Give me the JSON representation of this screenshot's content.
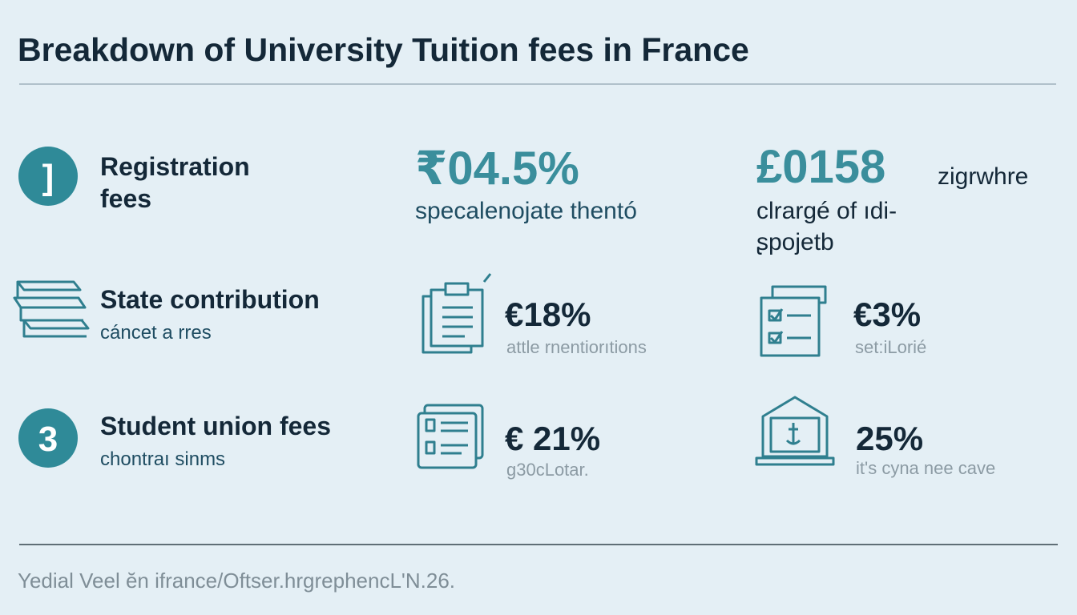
{
  "header": {
    "title": "Breakdown of University Tuition fees in France"
  },
  "rows": [
    {
      "badge": "]",
      "label": [
        "Registration",
        "fees"
      ],
      "stats": [
        {
          "value": "₹04.5%",
          "caption": [
            "specalenojate thentó"
          ]
        },
        {
          "value": "£0158",
          "note": "zigrwhre",
          "caption": [
            "clrargé of ıdi-",
            "ʂpojetb"
          ]
        }
      ]
    },
    {
      "label": [
        "State contribution"
      ],
      "subtitle": "cáncet a rres",
      "stats": [
        {
          "value": "€18%",
          "caption": [
            "attle rnentiorıtions"
          ]
        },
        {
          "value": "€3%",
          "caption": [
            "set:iLorié"
          ]
        }
      ]
    },
    {
      "badge": "3",
      "label": [
        "Student union fees"
      ],
      "subtitle": "chontraı sinms",
      "stats": [
        {
          "value": "€ 21%",
          "caption": [
            "g30cLotar."
          ]
        },
        {
          "value": "25%",
          "caption": [
            "it's cyna nee cave"
          ]
        }
      ]
    }
  ],
  "footer": {
    "text": "Yedial Veel ĕn ifrance/Oftser.hrgrephencL'N.26."
  }
}
